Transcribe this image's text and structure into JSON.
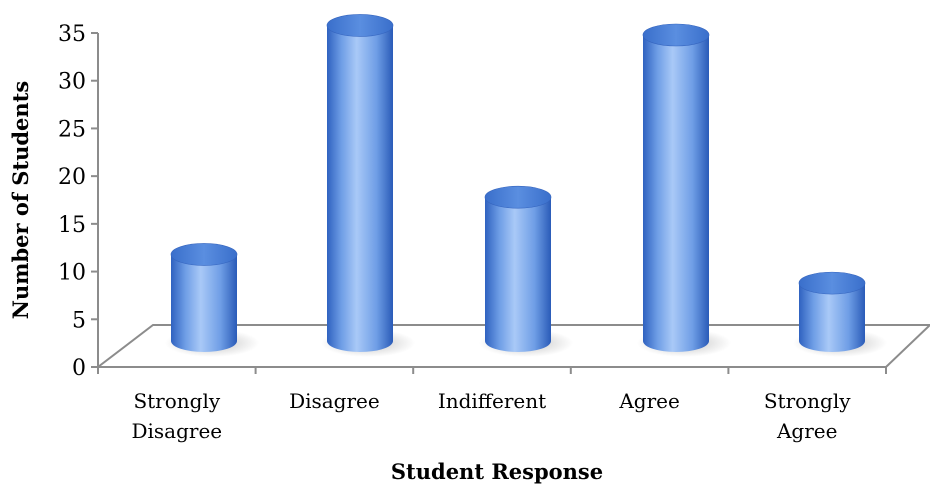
{
  "chart_data": {
    "type": "bar",
    "style": "3d-cylinder",
    "categories": [
      [
        "Strongly",
        "Disagree"
      ],
      [
        "Disagree"
      ],
      [
        "Indifferent"
      ],
      [
        "Agree"
      ],
      [
        "Strongly",
        "Agree"
      ]
    ],
    "values": [
      12,
      36,
      18,
      35,
      9
    ],
    "xlabel": "Student Response",
    "ylabel": "Number of Students",
    "ylim": [
      0,
      35
    ],
    "yticks": [
      0,
      5,
      10,
      15,
      20,
      25,
      30,
      35
    ],
    "grid": false,
    "legend": "none",
    "colors": {
      "bar_light": "#a9c9f7",
      "bar_mid": "#6f9ee6",
      "bar_dark": "#2f62c0",
      "bar_top": "#4a7fd6",
      "floor": "#ffffff",
      "axis": "#8c8c8c"
    }
  }
}
